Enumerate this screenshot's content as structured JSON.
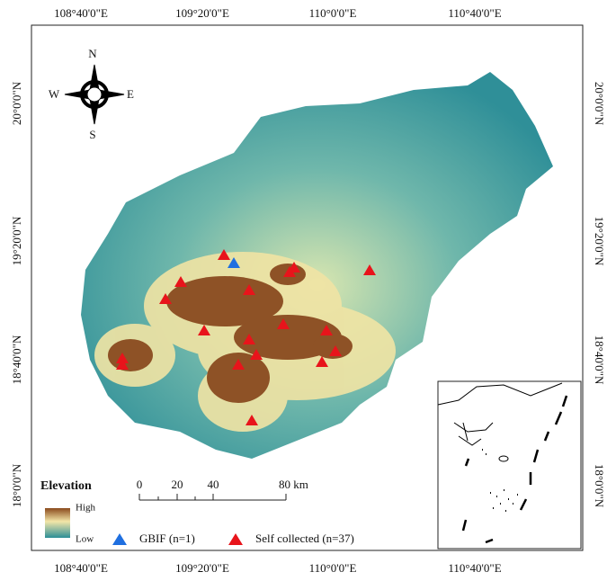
{
  "axes": {
    "top": [
      "108°40'0\"E",
      "109°20'0\"E",
      "110°0'0\"E",
      "110°40'0\"E"
    ],
    "bottom": [
      "108°40'0\"E",
      "109°20'0\"E",
      "110°0'0\"E",
      "110°40'0\"E"
    ],
    "left": [
      "20°0'0\"N",
      "19°20'0\"N",
      "18°40'0\"N",
      "18°0'0\"N"
    ],
    "right": [
      "20°0'0\"N",
      "19°20'0\"N",
      "18°40'0\"N",
      "18°0'0\"N"
    ]
  },
  "compass": {
    "north": "N",
    "south": "S",
    "west": "W",
    "east": "E"
  },
  "legend": {
    "title": "Elevation",
    "high": "High",
    "low": "Low",
    "gbif": "GBIF (n=1)",
    "self_collected": "Self collected (n=37)"
  },
  "scale_bar": {
    "labels": [
      "0",
      "20",
      "40",
      "80 km"
    ]
  }
}
